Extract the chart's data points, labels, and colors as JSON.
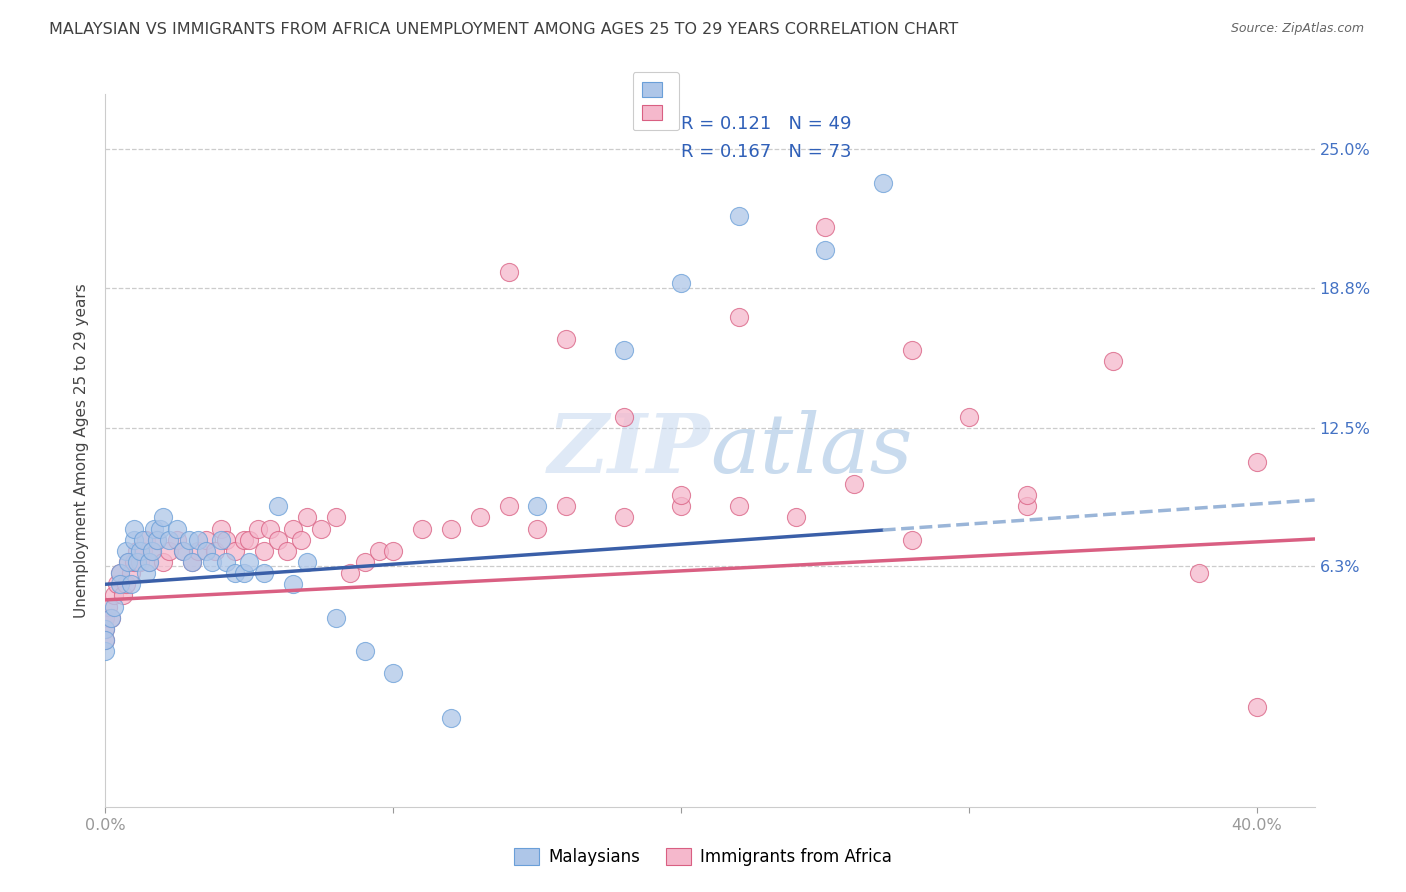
{
  "title": "MALAYSIAN VS IMMIGRANTS FROM AFRICA UNEMPLOYMENT AMONG AGES 25 TO 29 YEARS CORRELATION CHART",
  "source": "Source: ZipAtlas.com",
  "ylabel": "Unemployment Among Ages 25 to 29 years",
  "xlim": [
    0.0,
    0.42
  ],
  "ylim": [
    -0.045,
    0.275
  ],
  "y_ticks_right": [
    0.25,
    0.188,
    0.125,
    0.063
  ],
  "y_tick_labels_right": [
    "25.0%",
    "18.8%",
    "12.5%",
    "6.3%"
  ],
  "legend_r1": "R = 0.121",
  "legend_n1": "N = 49",
  "legend_r2": "R = 0.167",
  "legend_n2": "N = 73",
  "color_blue": "#aec6e8",
  "color_pink": "#f5b8cc",
  "line_blue": "#3a5fa8",
  "line_pink": "#d95f82",
  "line_blue_dashed": "#9ab5d8",
  "title_color": "#404040",
  "gridline_color": "#cccccc",
  "background_color": "#ffffff",
  "malaysians_x": [
    0.0,
    0.0,
    0.0,
    0.002,
    0.003,
    0.005,
    0.005,
    0.007,
    0.008,
    0.009,
    0.01,
    0.01,
    0.011,
    0.012,
    0.013,
    0.014,
    0.015,
    0.016,
    0.017,
    0.018,
    0.019,
    0.02,
    0.022,
    0.025,
    0.027,
    0.029,
    0.03,
    0.032,
    0.035,
    0.037,
    0.04,
    0.042,
    0.045,
    0.048,
    0.05,
    0.055,
    0.06,
    0.065,
    0.07,
    0.08,
    0.09,
    0.1,
    0.12,
    0.15,
    0.18,
    0.2,
    0.22,
    0.25,
    0.27
  ],
  "malaysians_y": [
    0.035,
    0.025,
    0.03,
    0.04,
    0.045,
    0.06,
    0.055,
    0.07,
    0.065,
    0.055,
    0.075,
    0.08,
    0.065,
    0.07,
    0.075,
    0.06,
    0.065,
    0.07,
    0.08,
    0.075,
    0.08,
    0.085,
    0.075,
    0.08,
    0.07,
    0.075,
    0.065,
    0.075,
    0.07,
    0.065,
    0.075,
    0.065,
    0.06,
    0.06,
    0.065,
    0.06,
    0.09,
    0.055,
    0.065,
    0.04,
    0.025,
    0.015,
    -0.005,
    0.09,
    0.16,
    0.19,
    0.22,
    0.205,
    0.235
  ],
  "africans_x": [
    0.0,
    0.0,
    0.0,
    0.001,
    0.002,
    0.003,
    0.004,
    0.005,
    0.006,
    0.007,
    0.008,
    0.009,
    0.01,
    0.011,
    0.012,
    0.013,
    0.014,
    0.015,
    0.016,
    0.018,
    0.02,
    0.022,
    0.025,
    0.027,
    0.03,
    0.032,
    0.035,
    0.038,
    0.04,
    0.042,
    0.045,
    0.048,
    0.05,
    0.053,
    0.055,
    0.057,
    0.06,
    0.063,
    0.065,
    0.068,
    0.07,
    0.075,
    0.08,
    0.085,
    0.09,
    0.095,
    0.1,
    0.11,
    0.12,
    0.13,
    0.14,
    0.15,
    0.16,
    0.18,
    0.2,
    0.22,
    0.24,
    0.26,
    0.28,
    0.3,
    0.32,
    0.35,
    0.38,
    0.4,
    0.4,
    0.22,
    0.25,
    0.14,
    0.18,
    0.16,
    0.2,
    0.28,
    0.32
  ],
  "africans_y": [
    0.04,
    0.03,
    0.035,
    0.045,
    0.04,
    0.05,
    0.055,
    0.06,
    0.05,
    0.055,
    0.065,
    0.06,
    0.065,
    0.07,
    0.065,
    0.07,
    0.075,
    0.065,
    0.07,
    0.075,
    0.065,
    0.07,
    0.075,
    0.07,
    0.065,
    0.07,
    0.075,
    0.07,
    0.08,
    0.075,
    0.07,
    0.075,
    0.075,
    0.08,
    0.07,
    0.08,
    0.075,
    0.07,
    0.08,
    0.075,
    0.085,
    0.08,
    0.085,
    0.06,
    0.065,
    0.07,
    0.07,
    0.08,
    0.08,
    0.085,
    0.09,
    0.08,
    0.09,
    0.085,
    0.09,
    0.09,
    0.085,
    0.1,
    0.16,
    0.13,
    0.09,
    0.155,
    0.06,
    0.11,
    0.0,
    0.175,
    0.215,
    0.195,
    0.13,
    0.165,
    0.095,
    0.075,
    0.095
  ],
  "blue_line_solid_end": 0.27,
  "blue_intercept": 0.055,
  "blue_slope": 0.09,
  "pink_intercept": 0.048,
  "pink_slope": 0.065
}
